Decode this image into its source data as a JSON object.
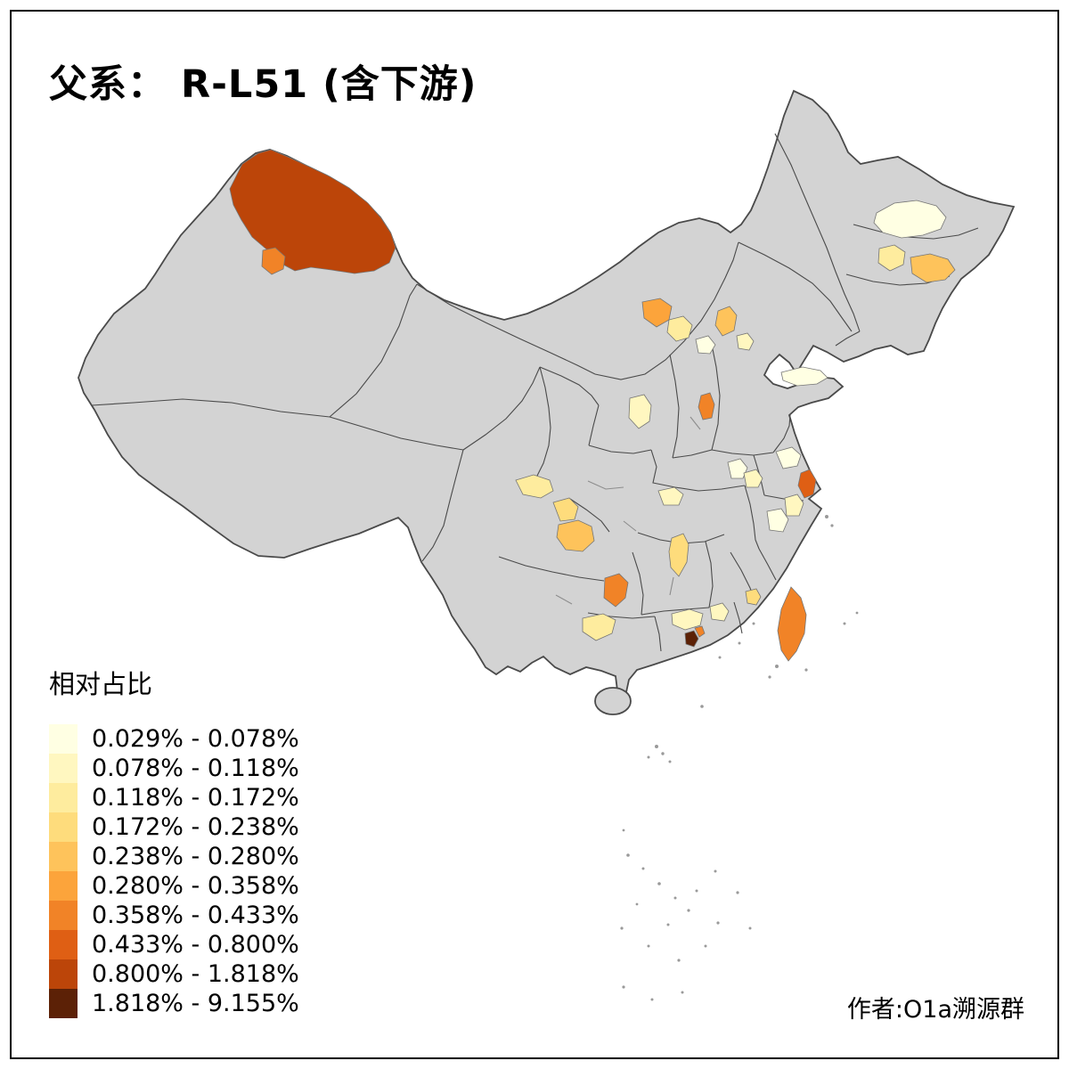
{
  "title": "父系： R-L51 (含下游)",
  "attribution": "作者:O1a溯源群",
  "legend": {
    "title": "相对占比",
    "items": [
      {
        "label": "0.029% - 0.078%",
        "color": "#FFFFE3"
      },
      {
        "label": "0.078% - 0.118%",
        "color": "#FFF7C0"
      },
      {
        "label": "0.118% - 0.172%",
        "color": "#FEEC9E"
      },
      {
        "label": "0.172% - 0.238%",
        "color": "#FEDC7C"
      },
      {
        "label": "0.238% - 0.280%",
        "color": "#FEC35B"
      },
      {
        "label": "0.280% - 0.358%",
        "color": "#FCA43B"
      },
      {
        "label": "0.358% - 0.433%",
        "color": "#F18327"
      },
      {
        "label": "0.433% - 0.800%",
        "color": "#DF5F14"
      },
      {
        "label": "0.800% - 1.818%",
        "color": "#BC4509"
      },
      {
        "label": "1.818% - 9.155%",
        "color": "#5C2106"
      }
    ]
  },
  "map": {
    "land_color": "#D3D3D3",
    "border_color": "#4A4A4A",
    "background_color": "#FFFFFF",
    "frame_color": "#000000",
    "island_color": "#9A9A9A"
  }
}
